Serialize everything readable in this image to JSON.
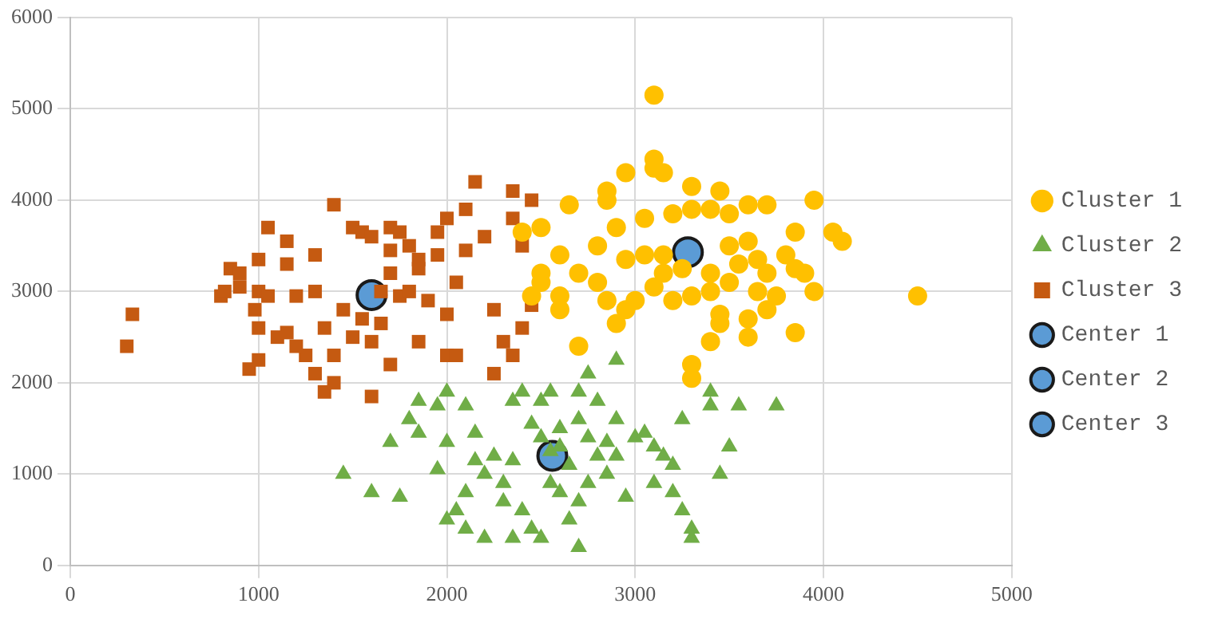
{
  "chart_data": {
    "type": "scatter",
    "xlim": [
      0,
      5000
    ],
    "xticks": [
      0,
      1000,
      2000,
      3000,
      4000,
      5000
    ],
    "ylim": [
      0,
      6000
    ],
    "yticks": [
      0,
      1000,
      2000,
      3000,
      4000,
      5000,
      6000
    ],
    "grid": true,
    "legend": "right",
    "series": [
      {
        "name": "Cluster 1",
        "color": "#ffc000",
        "marker": "circle",
        "x": [
          3100,
          2950,
          3100,
          3100,
          3150,
          3300,
          3450,
          2850,
          2850,
          2650,
          2900,
          3050,
          3200,
          3300,
          3400,
          3500,
          3600,
          3700,
          3950,
          3850,
          4050,
          4100,
          2500,
          2400,
          2600,
          2800,
          2950,
          3050,
          3150,
          3250,
          3400,
          3550,
          3600,
          3500,
          3650,
          3700,
          3800,
          3850,
          3900,
          3950,
          4500,
          2500,
          2600,
          2500,
          2450,
          2600,
          2850,
          2950,
          3000,
          3100,
          3200,
          3300,
          3400,
          3450,
          3600,
          3700,
          3750,
          2700,
          3300,
          3400,
          3450,
          3300,
          3600,
          3850,
          2700,
          2800,
          3150,
          3500,
          3650,
          2900
        ],
        "values": [
          5150,
          4300,
          4450,
          4350,
          4300,
          4150,
          4100,
          4000,
          4100,
          3950,
          3700,
          3800,
          3850,
          3900,
          3900,
          3850,
          3950,
          3950,
          4000,
          3650,
          3650,
          3550,
          3700,
          3650,
          3400,
          3500,
          3350,
          3400,
          3400,
          3250,
          3200,
          3300,
          3550,
          3500,
          3350,
          3200,
          3400,
          3250,
          3200,
          3000,
          2950,
          3200,
          2950,
          3100,
          2950,
          2800,
          2900,
          2800,
          2900,
          3050,
          2900,
          2950,
          3000,
          2750,
          2700,
          2800,
          2950,
          2400,
          2200,
          2450,
          2650,
          2050,
          2500,
          2550,
          3200,
          3100,
          3200,
          3100,
          3000,
          2650
        ]
      },
      {
        "name": "Cluster 2",
        "color": "#70ad47",
        "marker": "triangle",
        "x": [
          1450,
          1600,
          1750,
          1700,
          1800,
          1850,
          1950,
          2000,
          1850,
          2000,
          1950,
          2100,
          2150,
          2000,
          2050,
          2100,
          2200,
          2250,
          2300,
          2300,
          2350,
          2400,
          2450,
          2500,
          2550,
          2500,
          2550,
          2600,
          2600,
          2550,
          2600,
          2650,
          2700,
          2700,
          2750,
          2800,
          2750,
          2800,
          2850,
          2900,
          2850,
          2750,
          2700,
          2650,
          2700,
          2500,
          2450,
          2400,
          2350,
          2200,
          2100,
          2900,
          2900,
          3000,
          3050,
          3100,
          3100,
          3150,
          3200,
          3200,
          3250,
          3300,
          3300,
          3400,
          3400,
          3550,
          3500,
          3750,
          3450,
          3250,
          2950,
          2150,
          2350
        ],
        "values": [
          1000,
          800,
          750,
          1350,
          1600,
          1800,
          1750,
          1900,
          1450,
          1350,
          1050,
          1750,
          1450,
          500,
          600,
          800,
          1000,
          1200,
          900,
          700,
          1800,
          1900,
          1550,
          1800,
          1900,
          1400,
          1250,
          1500,
          1300,
          900,
          800,
          1100,
          1600,
          1900,
          2100,
          1800,
          1400,
          1200,
          1350,
          1200,
          1000,
          900,
          700,
          500,
          200,
          300,
          400,
          600,
          300,
          300,
          400,
          2250,
          1600,
          1400,
          1450,
          1300,
          900,
          1200,
          1100,
          800,
          600,
          400,
          300,
          1900,
          1750,
          1750,
          1300,
          1750,
          1000,
          1600,
          750,
          1150,
          1150
        ]
      },
      {
        "name": "Cluster 3",
        "color": "#c55a11",
        "marker": "square",
        "x": [
          300,
          330,
          800,
          820,
          850,
          900,
          950,
          980,
          1000,
          1000,
          1000,
          1000,
          1050,
          1050,
          1100,
          1150,
          1150,
          1200,
          1200,
          1250,
          1300,
          1300,
          1350,
          1350,
          1400,
          1400,
          1400,
          1450,
          1500,
          1500,
          1550,
          1550,
          1600,
          1600,
          1650,
          1650,
          1700,
          1700,
          1700,
          1700,
          1750,
          1800,
          1800,
          1850,
          1850,
          1900,
          1950,
          2000,
          2000,
          2000,
          2050,
          2050,
          2100,
          2100,
          2150,
          2200,
          2250,
          2300,
          2350,
          2350,
          2400,
          2400,
          2450,
          2450,
          1600,
          1950,
          1150,
          1300,
          2250,
          2350,
          900,
          1750,
          1850
        ],
        "values": [
          2400,
          2750,
          2950,
          3000,
          3250,
          3200,
          2150,
          2800,
          2250,
          2600,
          3000,
          3350,
          3700,
          2950,
          2500,
          3550,
          2550,
          2400,
          2950,
          2300,
          2100,
          3000,
          1900,
          2600,
          3950,
          2000,
          2300,
          2800,
          3700,
          2500,
          3650,
          2700,
          3600,
          2450,
          3000,
          2650,
          3700,
          3450,
          2200,
          3200,
          2950,
          3000,
          3500,
          2450,
          3350,
          2900,
          3650,
          3800,
          2300,
          2750,
          3100,
          2300,
          3900,
          3450,
          4200,
          3600,
          2800,
          2450,
          4100,
          3800,
          3500,
          2600,
          4000,
          2850,
          1850,
          3400,
          3300,
          3400,
          2100,
          2300,
          3050,
          3650,
          3250
        ]
      },
      {
        "name": "Center 1",
        "color": "#5b9bd5",
        "marker": "circle",
        "x": [
          3280
        ],
        "values": [
          3430
        ]
      },
      {
        "name": "Center 2",
        "color": "#5b9bd5",
        "marker": "circle",
        "x": [
          2560
        ],
        "values": [
          1200
        ]
      },
      {
        "name": "Center 3",
        "color": "#5b9bd5",
        "marker": "circle",
        "x": [
          1600
        ],
        "values": [
          2960
        ]
      }
    ]
  }
}
